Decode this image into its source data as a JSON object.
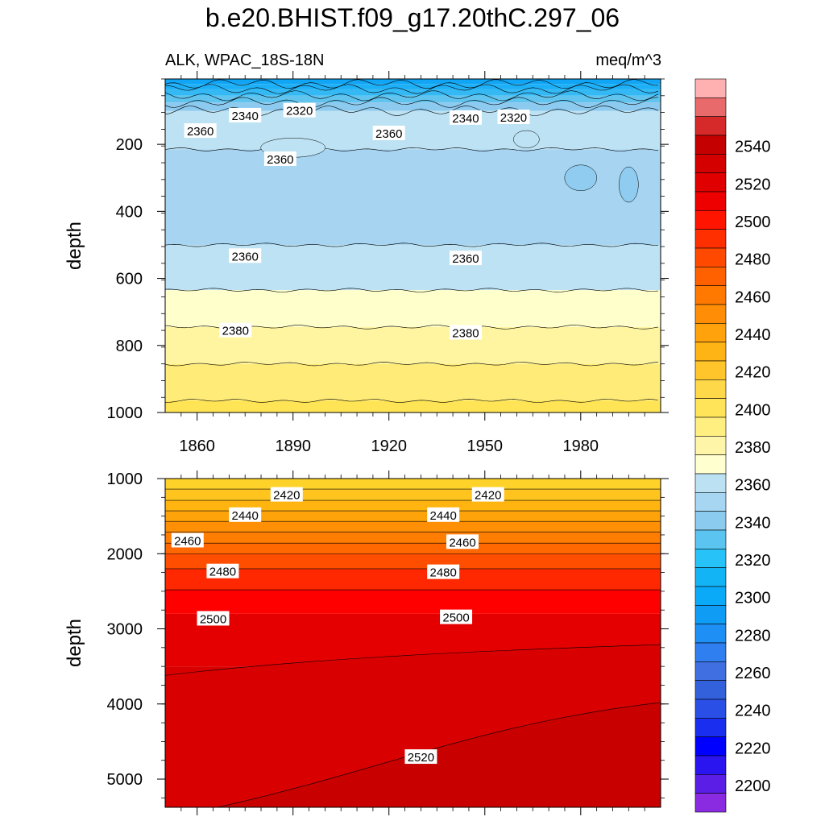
{
  "title": "b.e20.BHIST.f09_g17.20thC.297_06",
  "left_label": "ALK, WPAC_18S-18N",
  "right_label": "meq/m^3",
  "chart_data": [
    {
      "type": "contour",
      "panel": "upper",
      "ylabel": "depth",
      "x_ticks": [
        1860,
        1890,
        1920,
        1950,
        1980
      ],
      "y_ticks": [
        200,
        400,
        600,
        800,
        1000
      ],
      "xlim": [
        1850,
        2005
      ],
      "ylim": [
        1000,
        5
      ],
      "bands": [
        {
          "from": 5,
          "to": 20,
          "value": 2300
        },
        {
          "from": 20,
          "to": 35,
          "value": 2310
        },
        {
          "from": 35,
          "to": 55,
          "value": 2320
        },
        {
          "from": 55,
          "to": 75,
          "value": 2330
        },
        {
          "from": 75,
          "to": 100,
          "value": 2340
        },
        {
          "from": 100,
          "to": 215,
          "value": 2360
        },
        {
          "from": 215,
          "to": 500,
          "value": 2350
        },
        {
          "from": 500,
          "to": 635,
          "value": 2360
        },
        {
          "from": 635,
          "to": 745,
          "value": 2380
        },
        {
          "from": 745,
          "to": 855,
          "value": 2390
        },
        {
          "from": 855,
          "to": 965,
          "value": 2400
        },
        {
          "from": 965,
          "to": 1000,
          "value": 2405
        }
      ],
      "contour_lines": [
        20,
        35,
        55,
        75,
        100,
        215,
        500,
        635,
        745,
        855,
        965
      ],
      "labels": [
        {
          "text": "2320",
          "x": 1892,
          "y": 98
        },
        {
          "text": "2340",
          "x": 1875,
          "y": 113
        },
        {
          "text": "2340",
          "x": 1944,
          "y": 120
        },
        {
          "text": "2320",
          "x": 1959,
          "y": 118
        },
        {
          "text": "2360",
          "x": 1861,
          "y": 159
        },
        {
          "text": "2360",
          "x": 1920,
          "y": 166
        },
        {
          "text": "2360",
          "x": 1886,
          "y": 243
        },
        {
          "text": "2360",
          "x": 1875,
          "y": 532
        },
        {
          "text": "2360",
          "x": 1944,
          "y": 539
        },
        {
          "text": "2380",
          "x": 1872,
          "y": 754
        },
        {
          "text": "2380",
          "x": 1944,
          "y": 761
        }
      ]
    },
    {
      "type": "contour",
      "panel": "lower",
      "ylabel": "depth",
      "y_ticks": [
        1000,
        2000,
        3000,
        4000,
        5000
      ],
      "xlim": [
        1850,
        2005
      ],
      "ylim": [
        5375,
        1000
      ],
      "bands": [
        {
          "from": 1000,
          "to": 1140,
          "value": 2410
        },
        {
          "from": 1140,
          "to": 1290,
          "value": 2420
        },
        {
          "from": 1290,
          "to": 1430,
          "value": 2430
        },
        {
          "from": 1430,
          "to": 1570,
          "value": 2440
        },
        {
          "from": 1570,
          "to": 1710,
          "value": 2450
        },
        {
          "from": 1710,
          "to": 1860,
          "value": 2460
        },
        {
          "from": 1860,
          "to": 2000,
          "value": 2470
        },
        {
          "from": 2000,
          "to": 2200,
          "value": 2480
        },
        {
          "from": 2200,
          "to": 2480,
          "value": 2490
        },
        {
          "from": 2480,
          "to": 2800,
          "value": 2500
        },
        {
          "from": 2800,
          "to": 3500,
          "value": 2510
        },
        {
          "from": 3500,
          "to": 4800,
          "value": 2515
        },
        {
          "from": 4800,
          "to": 5375,
          "value": 2520
        }
      ],
      "labels": [
        {
          "text": "2420",
          "x": 1888,
          "y": 1210
        },
        {
          "text": "2420",
          "x": 1951,
          "y": 1210
        },
        {
          "text": "2440",
          "x": 1875,
          "y": 1480
        },
        {
          "text": "2440",
          "x": 1937,
          "y": 1480
        },
        {
          "text": "2460",
          "x": 1857,
          "y": 1820
        },
        {
          "text": "2460",
          "x": 1943,
          "y": 1840
        },
        {
          "text": "2480",
          "x": 1868,
          "y": 2230
        },
        {
          "text": "2480",
          "x": 1937,
          "y": 2240
        },
        {
          "text": "2500",
          "x": 1865,
          "y": 2860
        },
        {
          "text": "2500",
          "x": 1941,
          "y": 2840
        },
        {
          "text": "2520",
          "x": 1930,
          "y": 4700
        }
      ]
    }
  ],
  "colorbar": {
    "labels": [
      "2200",
      "2220",
      "2240",
      "2260",
      "2280",
      "2300",
      "2320",
      "2340",
      "2360",
      "2380",
      "2400",
      "2420",
      "2440",
      "2460",
      "2480",
      "2500",
      "2520",
      "2540"
    ],
    "colors": [
      "#8a2be2",
      "#5a1ee6",
      "#2a14f0",
      "#0000ff",
      "#1a2ef0",
      "#2a4fe6",
      "#3361dc",
      "#3f6fe0",
      "#2f7ff0",
      "#1e8ff5",
      "#0f9cf5",
      "#0aaaf8",
      "#13b4f5",
      "#27c2f7",
      "#5cc4f0",
      "#8ccbf0",
      "#a6d6f2",
      "#bbe1f3",
      "#ffffd0",
      "#fff5a8",
      "#ffef80",
      "#ffe45a",
      "#ffd84a",
      "#ffc52a",
      "#ffb416",
      "#ffa20c",
      "#ff8d06",
      "#ff7800",
      "#ff6100",
      "#ff4800",
      "#ff2f00",
      "#ff1400",
      "#ee0000",
      "#e00000",
      "#d40000",
      "#c40000",
      "#d62a2a",
      "#e86a6a",
      "#ffb0b0"
    ]
  }
}
